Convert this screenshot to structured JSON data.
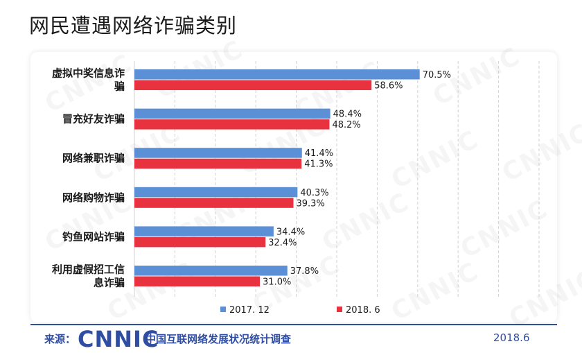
{
  "header": {
    "title": "网民遭遇网络诈骗类别"
  },
  "chart_data": {
    "type": "bar",
    "orientation": "horizontal",
    "title": "网民遭遇网络诈骗类别",
    "categories": [
      [
        "虚拟中奖信息诈",
        "骗"
      ],
      [
        "冒充好友诈骗"
      ],
      [
        "网络兼职诈骗"
      ],
      [
        "网络购物诈骗"
      ],
      [
        "钓鱼网站诈骗"
      ],
      [
        "利用虚假招工信",
        "息诈骗"
      ]
    ],
    "series": [
      {
        "name": "2017. 12",
        "color": "#5b8fd6",
        "values": [
          70.5,
          48.4,
          41.4,
          40.3,
          34.4,
          37.8
        ],
        "labels": [
          "70.5%",
          "48.4%",
          "41.4%",
          "40.3%",
          "34.4%",
          "37.8%"
        ]
      },
      {
        "name": "2018. 6",
        "color": "#e8323f",
        "values": [
          58.6,
          48.2,
          41.3,
          39.3,
          32.4,
          31.0
        ],
        "labels": [
          "58.6%",
          "48.2%",
          "41.3%",
          "39.3%",
          "32.4%",
          "31.0%"
        ]
      }
    ],
    "xlim": [
      0,
      100
    ],
    "grid": true,
    "gridlines": "vertical-dashed",
    "legend_position": "bottom"
  },
  "footer": {
    "source_label": "来源：",
    "logo_text": "CNNIC",
    "survey": "中国互联网络发展状况统计调查",
    "date": "2018.6"
  },
  "watermark": {
    "text": "CNNIC"
  }
}
